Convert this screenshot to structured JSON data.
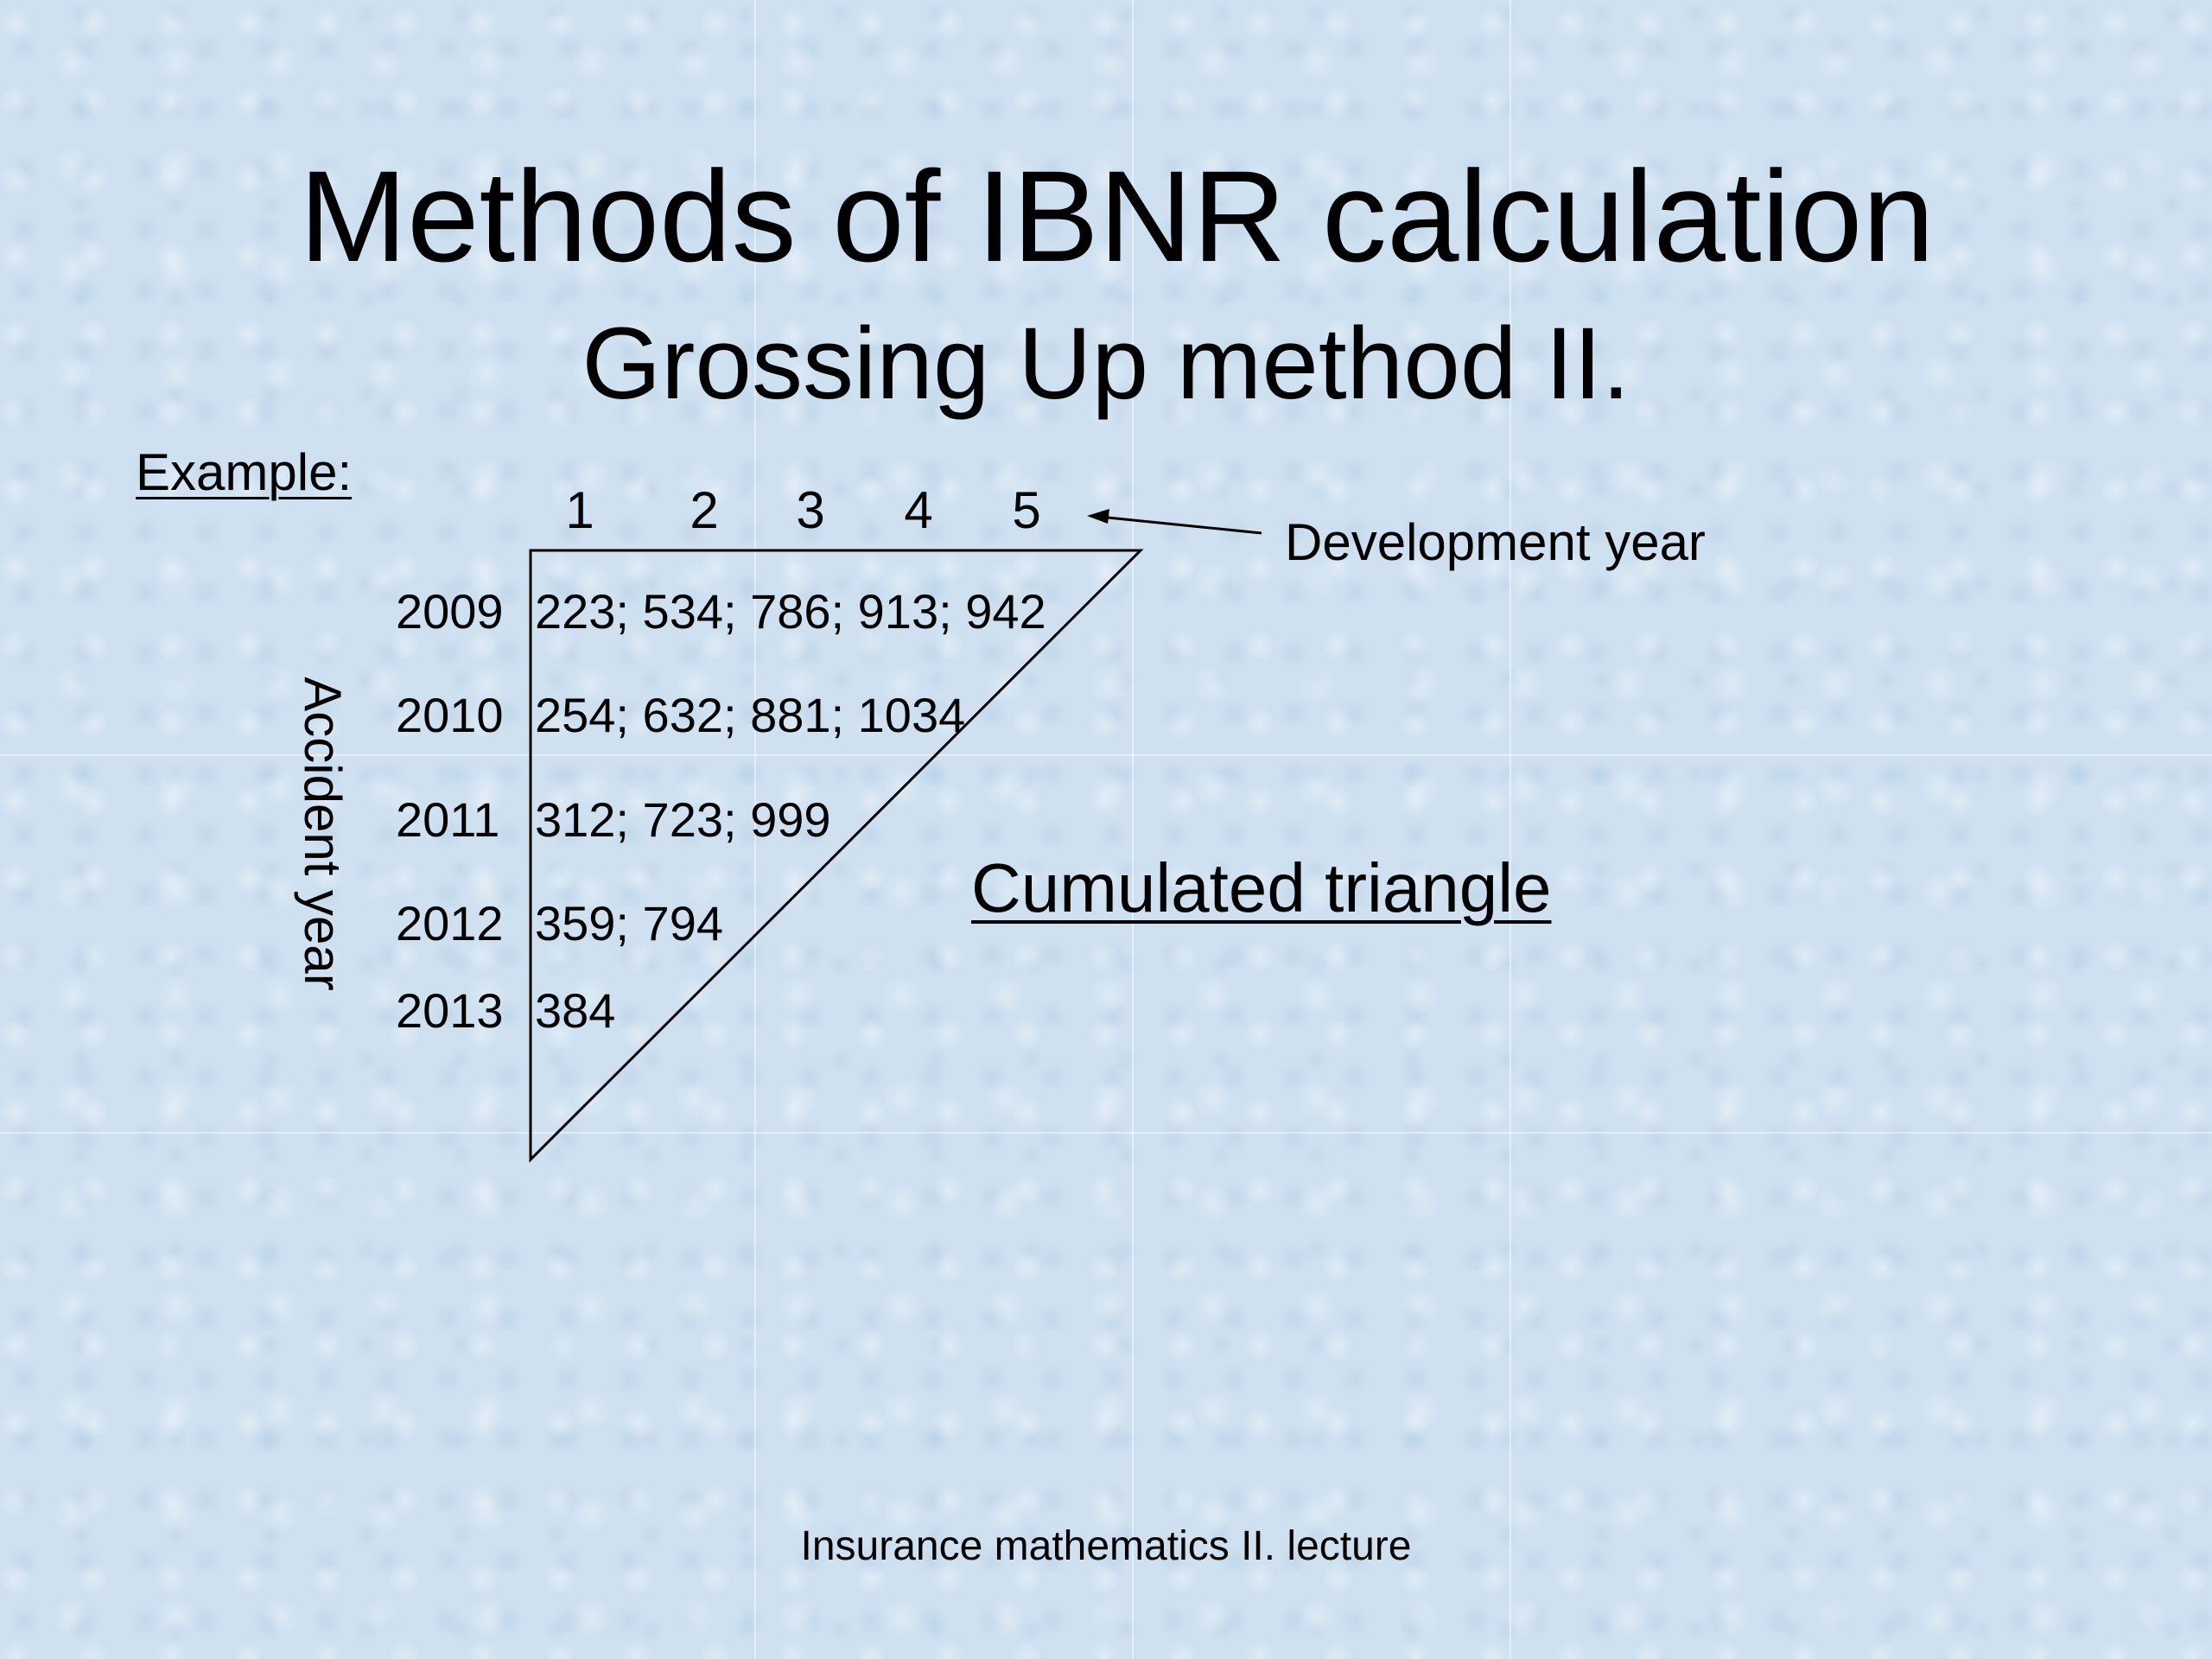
{
  "slide": {
    "title": "Methods of IBNR calculation",
    "subtitle": "Grossing Up method II.",
    "example_label": "Example:",
    "footer": "Insurance mathematics II. lecture"
  },
  "triangle": {
    "development_years": [
      "1",
      "2",
      "3",
      "4",
      "5"
    ],
    "development_label": "Development year",
    "accident_label": "Accident year",
    "rows": [
      {
        "year": "2009",
        "values": "223; 534; 786; 913; 942"
      },
      {
        "year": "2010",
        "values": "254; 632; 881; 1034"
      },
      {
        "year": "2011",
        "values": "312; 723; 999"
      },
      {
        "year": "2012",
        "values": "359; 794"
      },
      {
        "year": "2013",
        "values": "384"
      }
    ],
    "caption": "Cumulated triangle"
  }
}
